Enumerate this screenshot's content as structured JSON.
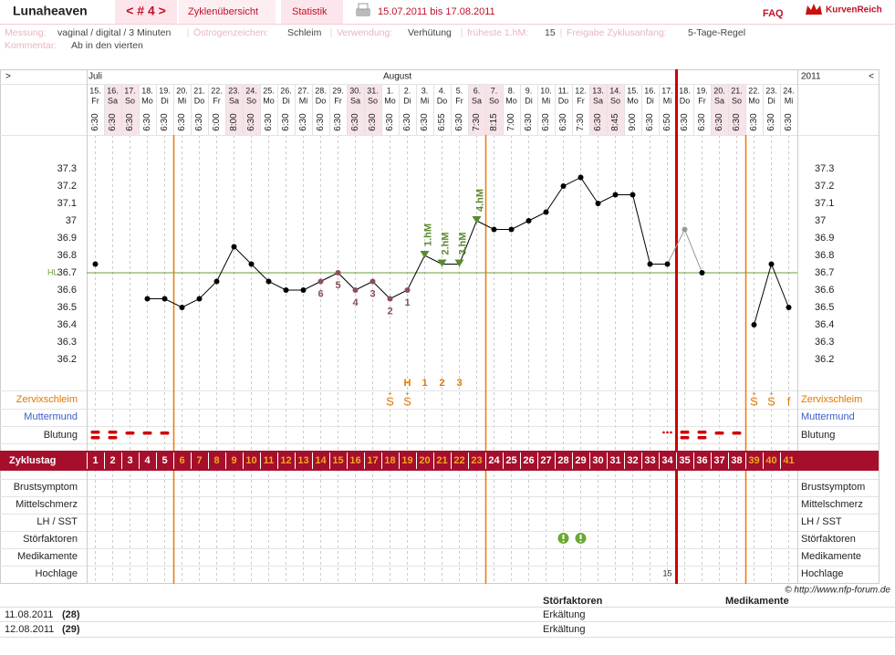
{
  "header": {
    "user": "Lunaheaven",
    "cycle": "< # 4 >",
    "tabs": [
      "Zyklenübersicht",
      "Statistik"
    ],
    "period": "15.07.2011 bis 17.08.2011",
    "faq": "FAQ",
    "brand": "KurvenReich"
  },
  "info": {
    "items": [
      {
        "label": "Messung:",
        "value": "vaginal / digital / 3 Minuten"
      },
      {
        "label": "Östrogenzeichen:",
        "value": "Schleim"
      },
      {
        "label": "Verwendung:",
        "value": "Verhütung"
      },
      {
        "label": "früheste 1.hM:",
        "value": "15"
      },
      {
        "label": "Freigabe Zyklusanfang:",
        "value": "5-Tage-Regel"
      }
    ],
    "comment": {
      "label": "Kommentar:",
      "value": "Ab in den vierten"
    }
  },
  "chart_data": {
    "type": "line",
    "nav_left": ">",
    "nav_right": "<",
    "year": "2011",
    "months": [
      {
        "label": "Juli",
        "day": 1
      },
      {
        "label": "August",
        "day": 18
      }
    ],
    "days": [
      "15.",
      "16.",
      "17.",
      "18.",
      "19.",
      "20.",
      "21.",
      "22.",
      "23.",
      "24.",
      "25.",
      "26.",
      "27.",
      "28.",
      "29.",
      "30.",
      "31.",
      "1.",
      "2.",
      "3.",
      "4.",
      "5.",
      "6.",
      "7.",
      "8.",
      "9.",
      "10.",
      "11.",
      "12.",
      "13.",
      "14.",
      "15.",
      "16.",
      "17.",
      "18.",
      "19.",
      "20.",
      "21.",
      "22.",
      "23.",
      "24."
    ],
    "weekdays": [
      "Fr",
      "Sa",
      "So",
      "Mo",
      "Di",
      "Mi",
      "Do",
      "Fr",
      "Sa",
      "So",
      "Mo",
      "Di",
      "Mi",
      "Do",
      "Fr",
      "Sa",
      "So",
      "Mo",
      "Di",
      "Mi",
      "Do",
      "Fr",
      "Sa",
      "So",
      "Mo",
      "Di",
      "Mi",
      "Do",
      "Fr",
      "Sa",
      "So",
      "Mo",
      "Di",
      "Mi",
      "Do",
      "Fr",
      "Sa",
      "So",
      "Mo",
      "Di",
      "Mi"
    ],
    "shade_weekdays": [
      "Sa",
      "So"
    ],
    "times": [
      "6:30",
      "6:30",
      "6:30",
      "6:30",
      "6:30",
      "6:30",
      "6:30",
      "6:00",
      "8:00",
      "6:30",
      "6:30",
      "6:30",
      "6:30",
      "6:30",
      "6:30",
      "6:30",
      "6:30",
      "6:30",
      "6:30",
      "6:30",
      "6:55",
      "6:30",
      "7:30",
      "8:15",
      "7:00",
      "6:30",
      "6:30",
      "6:30",
      "7:30",
      "6:30",
      "8:45",
      "9:00",
      "6:30",
      "6:50",
      "6:30",
      "6:30",
      "6:30",
      "6:30",
      "6:30",
      "6:30",
      "6:30"
    ],
    "cycle_label": "Zyklustag",
    "cycle_days": [
      1,
      2,
      3,
      4,
      5,
      6,
      7,
      8,
      9,
      10,
      11,
      12,
      13,
      14,
      15,
      16,
      17,
      18,
      19,
      20,
      21,
      22,
      23,
      24,
      25,
      26,
      27,
      28,
      29,
      30,
      31,
      32,
      33,
      34,
      35,
      36,
      37,
      38,
      39,
      40,
      41
    ],
    "values": [
      36.75,
      null,
      null,
      36.55,
      36.55,
      36.5,
      36.55,
      36.65,
      36.85,
      36.75,
      36.65,
      36.6,
      36.6,
      36.65,
      36.7,
      36.6,
      36.65,
      36.55,
      36.6,
      36.8,
      36.75,
      36.75,
      37,
      36.95,
      36.95,
      37,
      37.05,
      37.2,
      37.25,
      37.1,
      37.15,
      37.15,
      36.75,
      36.75,
      36.95,
      36.7,
      null,
      null,
      36.4,
      36.75,
      36.5
    ],
    "color": "#000000",
    "excluded_days": [
      35
    ],
    "excluded_color": "#999999",
    "ylim": [
      36.0,
      37.5
    ],
    "yticks": [
      36.2,
      36.3,
      36.4,
      36.5,
      36.6,
      36.7,
      36.8,
      36.9,
      37,
      37.1,
      37.2,
      37.3
    ],
    "hl": {
      "value": 36.7,
      "label": "HL",
      "color": "#6b9c3a"
    },
    "point_labels": {
      "color": "#8a4e5c",
      "items": [
        {
          "day": 14,
          "label": "6"
        },
        {
          "day": 15,
          "label": "5"
        },
        {
          "day": 16,
          "label": "4"
        },
        {
          "day": 17,
          "label": "3"
        },
        {
          "day": 18,
          "label": "2"
        },
        {
          "day": 19,
          "label": "1"
        }
      ]
    },
    "hm": {
      "color": "#5a8a30",
      "items": [
        {
          "day": 20,
          "label": "1.hM"
        },
        {
          "day": 21,
          "label": "2.hM"
        },
        {
          "day": 22,
          "label": "3.hM"
        },
        {
          "day": 23,
          "label": "4.hM"
        }
      ]
    },
    "signs": {
      "color": "#e07800",
      "items": [
        {
          "day": 19,
          "label": "H"
        },
        {
          "day": 20,
          "label": "1"
        },
        {
          "day": 21,
          "label": "2"
        },
        {
          "day": 22,
          "label": "3"
        }
      ]
    },
    "rows": {
      "mucus": {
        "label": "Zervixschleim",
        "color": "#e07800",
        "items": [
          {
            "day": 18,
            "label": "S",
            "mark": "+"
          },
          {
            "day": 19,
            "label": "S",
            "mark": "+"
          },
          {
            "day": 39,
            "label": "S",
            "mark": "+"
          },
          {
            "day": 40,
            "label": "S",
            "mark": "+"
          },
          {
            "day": 41,
            "label": "f"
          }
        ]
      },
      "cervix": {
        "label": "Muttermund",
        "color": "#3a5cc8"
      },
      "bleeding": {
        "label": "Blutung",
        "color": "#cc0000",
        "items": [
          {
            "day": 1,
            "level": "heavy"
          },
          {
            "day": 2,
            "level": "heavy"
          },
          {
            "day": 3,
            "level": "medium"
          },
          {
            "day": 4,
            "level": "medium"
          },
          {
            "day": 5,
            "level": "medium"
          },
          {
            "day": 34,
            "level": "spotting"
          },
          {
            "day": 35,
            "level": "heavy"
          },
          {
            "day": 36,
            "level": "heavy"
          },
          {
            "day": 37,
            "level": "medium"
          },
          {
            "day": 38,
            "level": "medium"
          }
        ]
      },
      "extra": [
        {
          "label": "Brustsymptom"
        },
        {
          "label": "Mittelschmerz"
        },
        {
          "label": "LH / SST"
        },
        {
          "label": "Störfaktoren",
          "days": [
            28,
            29
          ]
        },
        {
          "label": "Medikamente"
        },
        {
          "label": "Hochlage",
          "day": 34,
          "text": "15"
        }
      ]
    },
    "phase_lines": [
      {
        "after_day": 5,
        "color": "#f07800"
      },
      {
        "after_day": 23,
        "color": "#f07800"
      },
      {
        "after_day": 34,
        "color": "#cc0000"
      },
      {
        "after_day": 38,
        "color": "#f07800"
      }
    ],
    "fertile_color": "#f5a623"
  },
  "copyright": "© http://www.nfp-forum.de",
  "table": {
    "headers": [
      "Störfaktoren",
      "Medikamente"
    ],
    "rows": [
      {
        "date": "11.08.2011",
        "day": "(28)",
        "disturbance": "Erkältung"
      },
      {
        "date": "12.08.2011",
        "day": "(29)",
        "disturbance": "Erkältung"
      }
    ]
  }
}
